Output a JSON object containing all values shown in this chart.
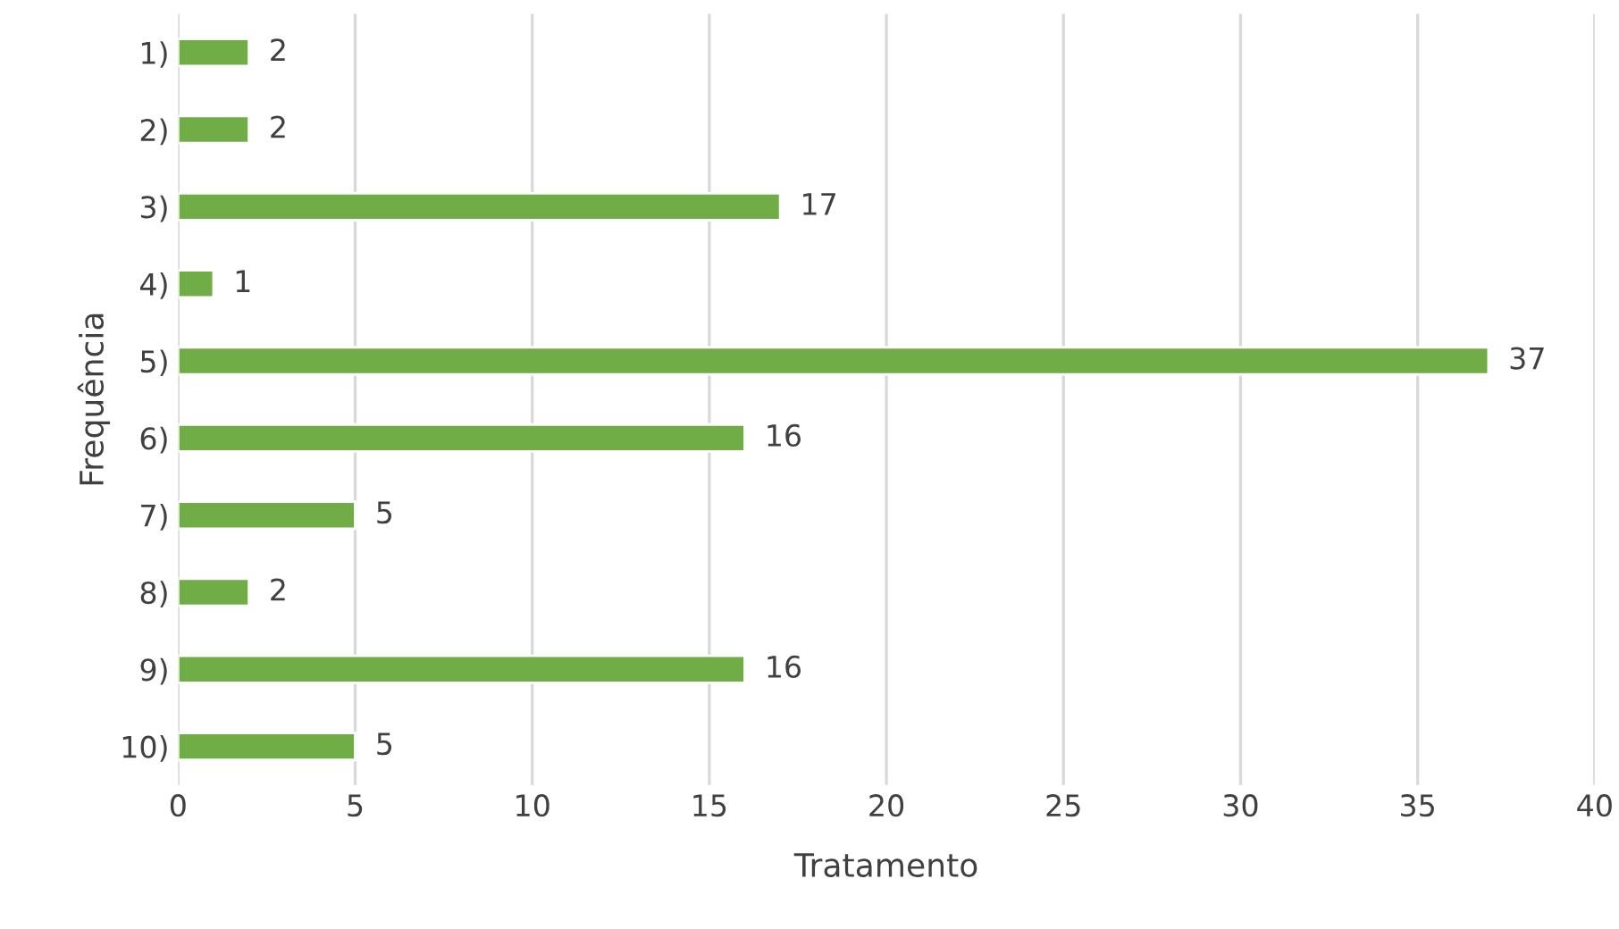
{
  "chart_data": {
    "type": "bar",
    "orientation": "horizontal",
    "xlabel": "Tratamento",
    "ylabel": "Frequência",
    "categories": [
      "1)",
      "2)",
      "3)",
      "4)",
      "5)",
      "6)",
      "7)",
      "8)",
      "9)",
      "10)"
    ],
    "values": [
      2,
      2,
      17,
      1,
      37,
      16,
      5,
      2,
      16,
      5
    ],
    "color": "#70ad47",
    "data_labels": true,
    "grid": "x",
    "xlim": [
      0,
      40
    ],
    "xticks": [
      0,
      5,
      10,
      15,
      20,
      25,
      30,
      35,
      40
    ]
  }
}
